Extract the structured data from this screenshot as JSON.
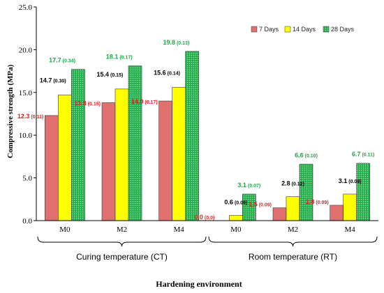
{
  "chart_data": {
    "type": "bar",
    "title": "",
    "ylabel": "Compressive strength (MPa)",
    "xlabel": "Hardening environment",
    "ylim": [
      0,
      25
    ],
    "yticks": [
      "0.0",
      "5.0",
      "10.0",
      "15.0",
      "20.0",
      "25.0"
    ],
    "grid": false,
    "legend_position": "top-right",
    "categories": [
      "M0",
      "M2",
      "M4",
      "M0",
      "M2",
      "M4"
    ],
    "groups": [
      {
        "label": "Curing temperature (CT)",
        "categories": [
          0,
          1,
          2
        ]
      },
      {
        "label": "Room temperature (RT)",
        "categories": [
          3,
          4,
          5
        ]
      }
    ],
    "series": [
      {
        "name": "7 Days",
        "color": "#e07070",
        "label_color": "#e41e1e",
        "values": [
          12.3,
          13.8,
          14.0,
          0.0,
          1.5,
          1.8
        ],
        "labels": [
          "12.3",
          "13.8",
          "14.0",
          "0.0",
          "1.5",
          "1.8"
        ],
        "sd": [
          "(0.11)",
          "(0.15)",
          "(0.17)",
          "(0.0)",
          "(0.09)",
          "(0.09)"
        ]
      },
      {
        "name": "14 Days",
        "color": "#ffff00",
        "label_color": "#000000",
        "values": [
          14.7,
          15.4,
          15.6,
          0.6,
          2.8,
          3.1
        ],
        "labels": [
          "14.7",
          "15.4",
          "15.6",
          "0.6",
          "2.8",
          "3.1"
        ],
        "sd": [
          "(0.30)",
          "(0.15)",
          "(0.14)",
          "(0.09)",
          "(0.12)",
          "(0.08)"
        ]
      },
      {
        "name": "28 Days",
        "color": "#22b04b",
        "label_color": "#1fa64a",
        "values": [
          17.7,
          18.1,
          19.8,
          3.1,
          6.6,
          6.7
        ],
        "labels": [
          "17.7",
          "18.1",
          "19.8",
          "3.1",
          "6.6",
          "6.7"
        ],
        "sd": [
          "(0.34)",
          "(0.17)",
          "(0.13)",
          "(0.07)",
          "(0.10)",
          "(0.11)"
        ]
      }
    ]
  }
}
